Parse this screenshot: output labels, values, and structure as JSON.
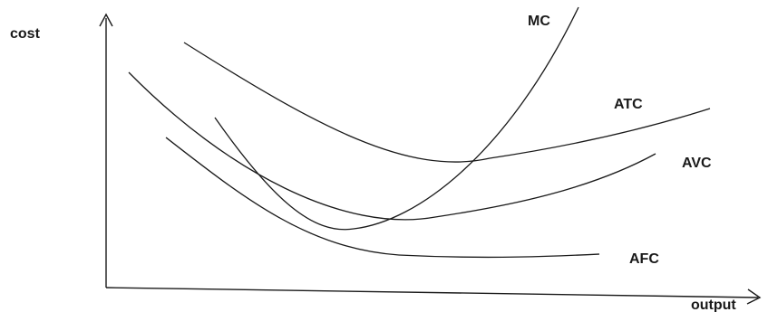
{
  "diagram": {
    "axes": {
      "y_label": "cost",
      "x_label": "output"
    },
    "curves": [
      {
        "key": "mc",
        "label": "MC"
      },
      {
        "key": "atc",
        "label": "ATC"
      },
      {
        "key": "avc",
        "label": "AVC"
      },
      {
        "key": "afc",
        "label": "AFC"
      }
    ]
  }
}
